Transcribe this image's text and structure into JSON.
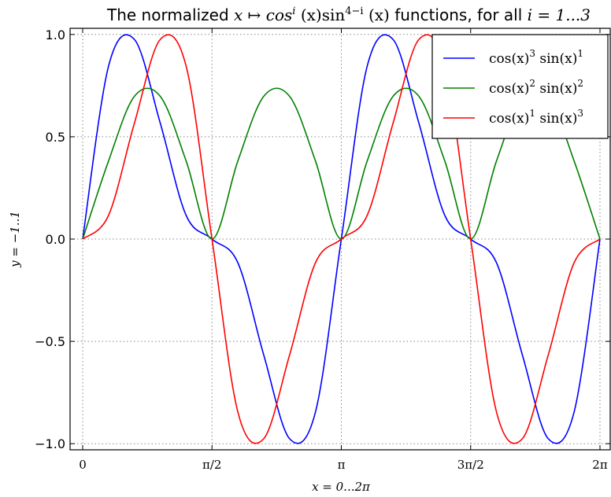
{
  "chart_data": {
    "type": "line",
    "title": {
      "prefix": "The normalized ",
      "math": "x ↦ cos",
      "sup1": "i",
      "math2": " (x)sin",
      "sup2": "4−i",
      "math3": " (x)",
      "suffix": " functions, for all ",
      "range": "i = 1...3"
    },
    "xlabel": "x = 0...2π",
    "ylabel": "y = −1..1",
    "xlim": [
      0,
      6.283185307
    ],
    "ylim": [
      -1.03,
      1.03
    ],
    "x_ticks": [
      {
        "value": 0,
        "label": "0"
      },
      {
        "value": 1.5707963,
        "label": "π/2"
      },
      {
        "value": 3.1415927,
        "label": "π"
      },
      {
        "value": 4.712389,
        "label": "3π/2"
      },
      {
        "value": 6.2831853,
        "label": "2π"
      }
    ],
    "y_ticks": [
      {
        "value": 1.0,
        "label": "1.0"
      },
      {
        "value": 0.5,
        "label": "0.5"
      },
      {
        "value": 0.0,
        "label": "0.0"
      },
      {
        "value": -0.5,
        "label": "−0.5"
      },
      {
        "value": -1.0,
        "label": "−1.0"
      }
    ],
    "grid": true,
    "legend_position": "top-right",
    "x": [
      0.0,
      0.3142,
      0.6283,
      0.9425,
      1.2566,
      1.5708,
      1.885,
      2.1991,
      2.5133,
      2.8274,
      3.1416,
      3.4558,
      3.7699,
      4.0841,
      4.3982,
      4.7124,
      5.0265,
      5.3407,
      5.6549,
      5.969,
      6.2832
    ],
    "series": [
      {
        "i": 1,
        "label_parts": {
          "base1": "cos(x)",
          "exp1": "3",
          "base2": " sin(x)",
          "exp2": "1"
        },
        "color": "#0000ff",
        "values": [
          0.0,
          0.8451,
          0.9757,
          0.5663,
          0.1158,
          0.0,
          -0.1158,
          -0.5663,
          -0.9757,
          -0.8451,
          0.0,
          0.8451,
          0.9757,
          0.5663,
          0.1158,
          0.0,
          -0.1158,
          -0.5663,
          -0.9757,
          -0.8451,
          0.0
        ]
      },
      {
        "i": 2,
        "label_parts": {
          "base1": "cos(x)",
          "exp1": "2",
          "base2": " sin(x)",
          "exp2": "2"
        },
        "color": "#008000",
        "values": [
          0.0,
          0.3817,
          0.6975,
          0.6975,
          0.3817,
          0.0,
          0.3817,
          0.6975,
          0.6975,
          0.3817,
          0.0,
          0.3817,
          0.6975,
          0.6975,
          0.3817,
          0.0,
          0.3817,
          0.6975,
          0.6975,
          0.3817,
          0.0
        ]
      },
      {
        "i": 3,
        "label_parts": {
          "base1": "cos(x)",
          "exp1": "1",
          "base2": " sin(x)",
          "exp2": "3"
        },
        "color": "#ff0000",
        "values": [
          0.0,
          0.1158,
          0.5663,
          0.9757,
          0.8451,
          0.0,
          -0.8451,
          -0.9757,
          -0.5663,
          -0.1158,
          0.0,
          0.1158,
          0.5663,
          0.9757,
          0.8451,
          0.0,
          -0.8451,
          -0.9757,
          -0.5663,
          -0.1158,
          0.0
        ]
      }
    ]
  }
}
